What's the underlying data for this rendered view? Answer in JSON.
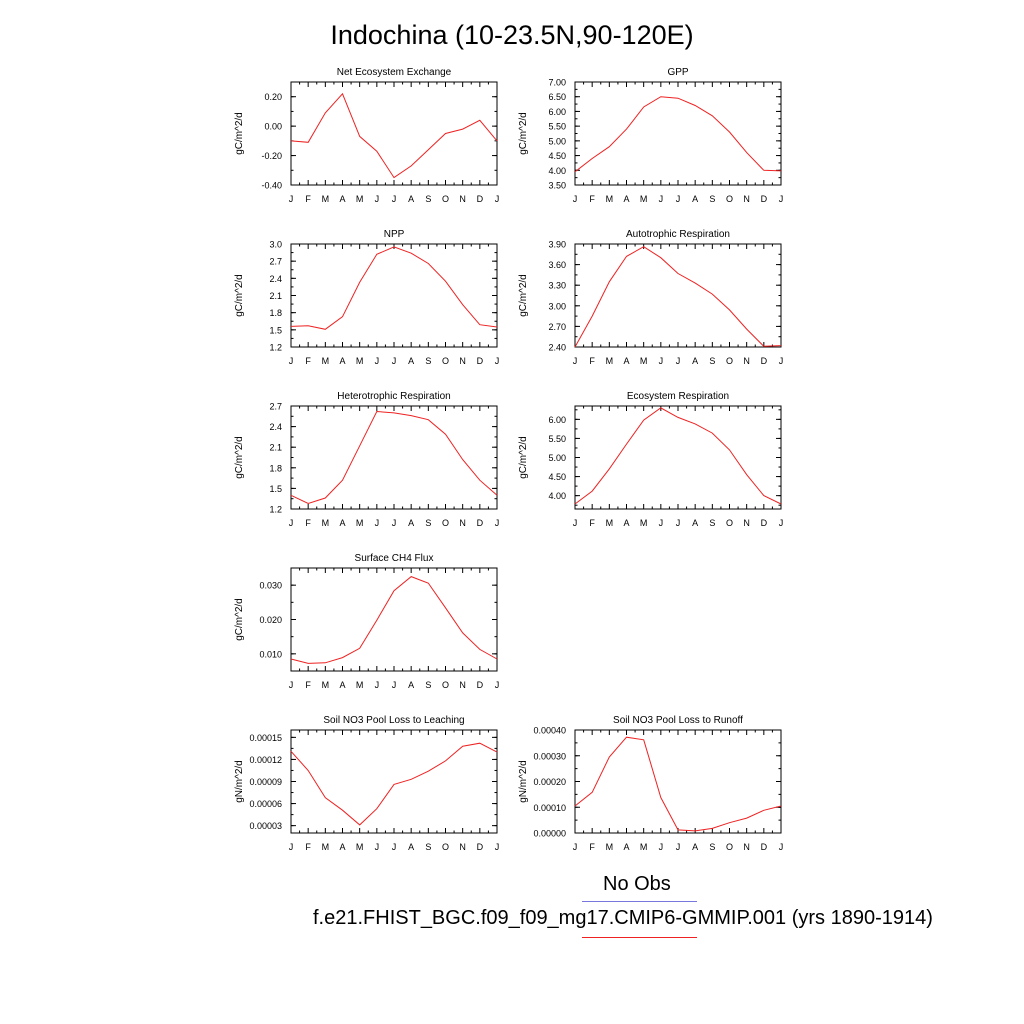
{
  "title": "Indochina (10-23.5N,90-120E)",
  "legend": {
    "obs_label": "No Obs",
    "obs_color": "#7777dd",
    "model_label": "f.e21.FHIST_BGC.f09_f09_mg17.CMIP6-GMMIP.001 (yrs 1890-1914)",
    "model_color": "#ee2222"
  },
  "chart_data": [
    {
      "type": "line",
      "title": "Net Ecosystem Exchange",
      "ylabel": "gC/m^2/d",
      "categories": [
        "J",
        "F",
        "M",
        "A",
        "M",
        "J",
        "J",
        "A",
        "S",
        "O",
        "N",
        "D",
        "J"
      ],
      "ylim": [
        -0.4,
        0.3
      ],
      "yticks": [
        "0.20",
        "0.00",
        "-0.20",
        "-0.40"
      ],
      "ytick_values": [
        0.2,
        0.0,
        -0.2,
        -0.4
      ],
      "series": [
        {
          "values": [
            -0.1,
            -0.11,
            0.09,
            0.22,
            -0.07,
            -0.17,
            -0.35,
            -0.27,
            -0.16,
            -0.05,
            -0.02,
            0.04,
            -0.1
          ]
        }
      ]
    },
    {
      "type": "line",
      "title": "GPP",
      "ylabel": "gC/m^2/d",
      "categories": [
        "J",
        "F",
        "M",
        "A",
        "M",
        "J",
        "J",
        "A",
        "S",
        "O",
        "N",
        "D",
        "J"
      ],
      "ylim": [
        3.5,
        7.0
      ],
      "yticks": [
        "7.00",
        "6.50",
        "6.00",
        "5.50",
        "5.00",
        "4.50",
        "4.00",
        "3.50"
      ],
      "ytick_values": [
        7.0,
        6.5,
        6.0,
        5.5,
        5.0,
        4.5,
        4.0,
        3.5
      ],
      "series": [
        {
          "values": [
            3.95,
            4.4,
            4.8,
            5.4,
            6.15,
            6.5,
            6.45,
            6.2,
            5.85,
            5.3,
            4.6,
            4.0,
            3.98
          ]
        }
      ]
    },
    {
      "type": "line",
      "title": "NPP",
      "ylabel": "gC/m^2/d",
      "categories": [
        "J",
        "F",
        "M",
        "A",
        "M",
        "J",
        "J",
        "A",
        "S",
        "O",
        "N",
        "D",
        "J"
      ],
      "ylim": [
        1.2,
        3.0
      ],
      "yticks": [
        "3.0",
        "2.7",
        "2.4",
        "2.1",
        "1.8",
        "1.5",
        "1.2"
      ],
      "ytick_values": [
        3.0,
        2.7,
        2.4,
        2.1,
        1.8,
        1.5,
        1.2
      ],
      "series": [
        {
          "values": [
            1.56,
            1.57,
            1.51,
            1.73,
            2.33,
            2.82,
            2.95,
            2.84,
            2.66,
            2.35,
            1.94,
            1.59,
            1.55
          ]
        }
      ]
    },
    {
      "type": "line",
      "title": "Autotrophic Respiration",
      "ylabel": "gC/m^2/d",
      "categories": [
        "J",
        "F",
        "M",
        "A",
        "M",
        "J",
        "J",
        "A",
        "S",
        "O",
        "N",
        "D",
        "J"
      ],
      "ylim": [
        2.4,
        3.9
      ],
      "yticks": [
        "3.90",
        "3.60",
        "3.30",
        "3.00",
        "2.70",
        "2.40"
      ],
      "ytick_values": [
        3.9,
        3.6,
        3.3,
        3.0,
        2.7,
        2.4
      ],
      "series": [
        {
          "values": [
            2.4,
            2.85,
            3.35,
            3.72,
            3.86,
            3.7,
            3.47,
            3.33,
            3.17,
            2.94,
            2.66,
            2.41,
            2.42
          ]
        }
      ]
    },
    {
      "type": "line",
      "title": "Heterotrophic Respiration",
      "ylabel": "gC/m^2/d",
      "categories": [
        "J",
        "F",
        "M",
        "A",
        "M",
        "J",
        "J",
        "A",
        "S",
        "O",
        "N",
        "D",
        "J"
      ],
      "ylim": [
        1.2,
        2.7
      ],
      "yticks": [
        "2.7",
        "2.4",
        "2.1",
        "1.8",
        "1.5",
        "1.2"
      ],
      "ytick_values": [
        2.7,
        2.4,
        2.1,
        1.8,
        1.5,
        1.2
      ],
      "series": [
        {
          "values": [
            1.4,
            1.28,
            1.36,
            1.62,
            2.12,
            2.62,
            2.6,
            2.56,
            2.5,
            2.29,
            1.92,
            1.62,
            1.4
          ]
        }
      ]
    },
    {
      "type": "line",
      "title": "Ecosystem Respiration",
      "ylabel": "gC/m^2/d",
      "categories": [
        "J",
        "F",
        "M",
        "A",
        "M",
        "J",
        "J",
        "A",
        "S",
        "O",
        "N",
        "D",
        "J"
      ],
      "ylim": [
        3.65,
        6.35
      ],
      "yticks": [
        "6.00",
        "5.50",
        "5.00",
        "4.50",
        "4.00"
      ],
      "ytick_values": [
        6.0,
        5.5,
        5.0,
        4.5,
        4.0
      ],
      "series": [
        {
          "values": [
            3.78,
            4.12,
            4.7,
            5.35,
            5.98,
            6.3,
            6.05,
            5.88,
            5.64,
            5.2,
            4.55,
            4.0,
            3.78
          ]
        }
      ]
    },
    {
      "type": "line",
      "title": "Surface CH4 Flux",
      "ylabel": "gC/m^2/d",
      "categories": [
        "J",
        "F",
        "M",
        "A",
        "M",
        "J",
        "J",
        "A",
        "S",
        "O",
        "N",
        "D",
        "J"
      ],
      "ylim": [
        0.005,
        0.035
      ],
      "yticks": [
        "0.030",
        "0.020",
        "0.010"
      ],
      "ytick_values": [
        0.03,
        0.02,
        0.01
      ],
      "series": [
        {
          "values": [
            0.0085,
            0.0072,
            0.0074,
            0.0089,
            0.0116,
            0.0198,
            0.0284,
            0.0325,
            0.0306,
            0.0234,
            0.0161,
            0.0113,
            0.0085
          ]
        }
      ]
    },
    {
      "type": "line",
      "title": "Soil NO3 Pool Loss to Leaching",
      "ylabel": "gN/m^2/d",
      "categories": [
        "J",
        "F",
        "M",
        "A",
        "M",
        "J",
        "J",
        "A",
        "S",
        "O",
        "N",
        "D",
        "J"
      ],
      "ylim": [
        2e-05,
        0.00016
      ],
      "yticks": [
        "0.00015",
        "0.00012",
        "0.00009",
        "0.00006",
        "0.00003"
      ],
      "ytick_values": [
        0.00015,
        0.00012,
        9e-05,
        6e-05,
        3e-05
      ],
      "series": [
        {
          "values": [
            0.000131,
            0.000105,
            6.8e-05,
            5.1e-05,
            3.1e-05,
            5.3e-05,
            8.6e-05,
            9.3e-05,
            0.000104,
            0.000118,
            0.000138,
            0.000142,
            0.00013
          ]
        }
      ]
    },
    {
      "type": "line",
      "title": "Soil NO3 Pool Loss to Runoff",
      "ylabel": "gN/m^2/d",
      "categories": [
        "J",
        "F",
        "M",
        "A",
        "M",
        "J",
        "J",
        "A",
        "S",
        "O",
        "N",
        "D",
        "J"
      ],
      "ylim": [
        0.0,
        0.0004
      ],
      "yticks": [
        "0.00040",
        "0.00030",
        "0.00020",
        "0.00010",
        "0.00000"
      ],
      "ytick_values": [
        0.0004,
        0.0003,
        0.0002,
        0.0001,
        0.0
      ],
      "series": [
        {
          "values": [
            0.000105,
            0.000158,
            0.000295,
            0.000372,
            0.000362,
            0.000138,
            1.2e-05,
            8e-06,
            1.8e-05,
            4e-05,
            5.8e-05,
            8.8e-05,
            0.000105
          ]
        }
      ]
    }
  ]
}
